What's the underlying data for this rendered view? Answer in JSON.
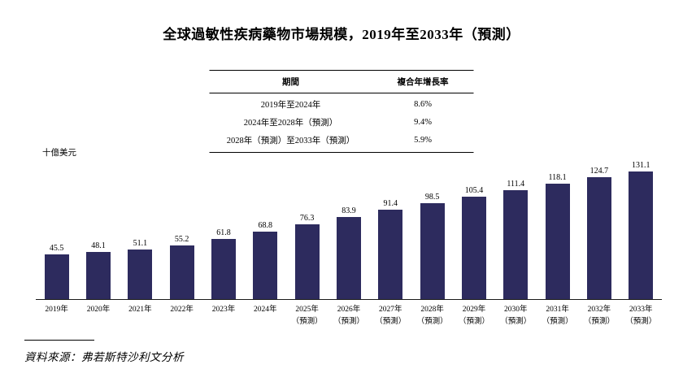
{
  "title": "全球過敏性疾病藥物市場規模，2019年至2033年（預測）",
  "cagr_table": {
    "headers": [
      "期間",
      "複合年增長率"
    ],
    "rows": [
      [
        "2019年至2024年",
        "8.6%"
      ],
      [
        "2024年至2028年（預測）",
        "9.4%"
      ],
      [
        "2028年（預測）至2033年（預測）",
        "5.9%"
      ]
    ]
  },
  "chart_data": {
    "type": "bar",
    "title": "全球過敏性疾病藥物市場規模，2019年至2033年（預測）",
    "ylabel": "十億美元",
    "unit_label": "十億美元",
    "bar_color": "#2d2b5e",
    "ylim": [
      0,
      140
    ],
    "grid": false,
    "legend": "none",
    "categories": [
      {
        "label": "2019年",
        "sub": ""
      },
      {
        "label": "2020年",
        "sub": ""
      },
      {
        "label": "2021年",
        "sub": ""
      },
      {
        "label": "2022年",
        "sub": ""
      },
      {
        "label": "2023年",
        "sub": ""
      },
      {
        "label": "2024年",
        "sub": ""
      },
      {
        "label": "2025年",
        "sub": "（預測）"
      },
      {
        "label": "2026年",
        "sub": "（預測）"
      },
      {
        "label": "2027年",
        "sub": "（預測）"
      },
      {
        "label": "2028年",
        "sub": "（預測）"
      },
      {
        "label": "2029年",
        "sub": "（預測）"
      },
      {
        "label": "2030年",
        "sub": "（預測）"
      },
      {
        "label": "2031年",
        "sub": "（預測）"
      },
      {
        "label": "2032年",
        "sub": "（預測）"
      },
      {
        "label": "2033年",
        "sub": "（預測）"
      }
    ],
    "values": [
      45.5,
      48.1,
      51.1,
      55.2,
      61.8,
      68.8,
      76.3,
      83.9,
      91.4,
      98.5,
      105.4,
      111.4,
      118.1,
      124.7,
      131.1
    ]
  },
  "source": "資料來源：弗若斯特沙利文分析"
}
